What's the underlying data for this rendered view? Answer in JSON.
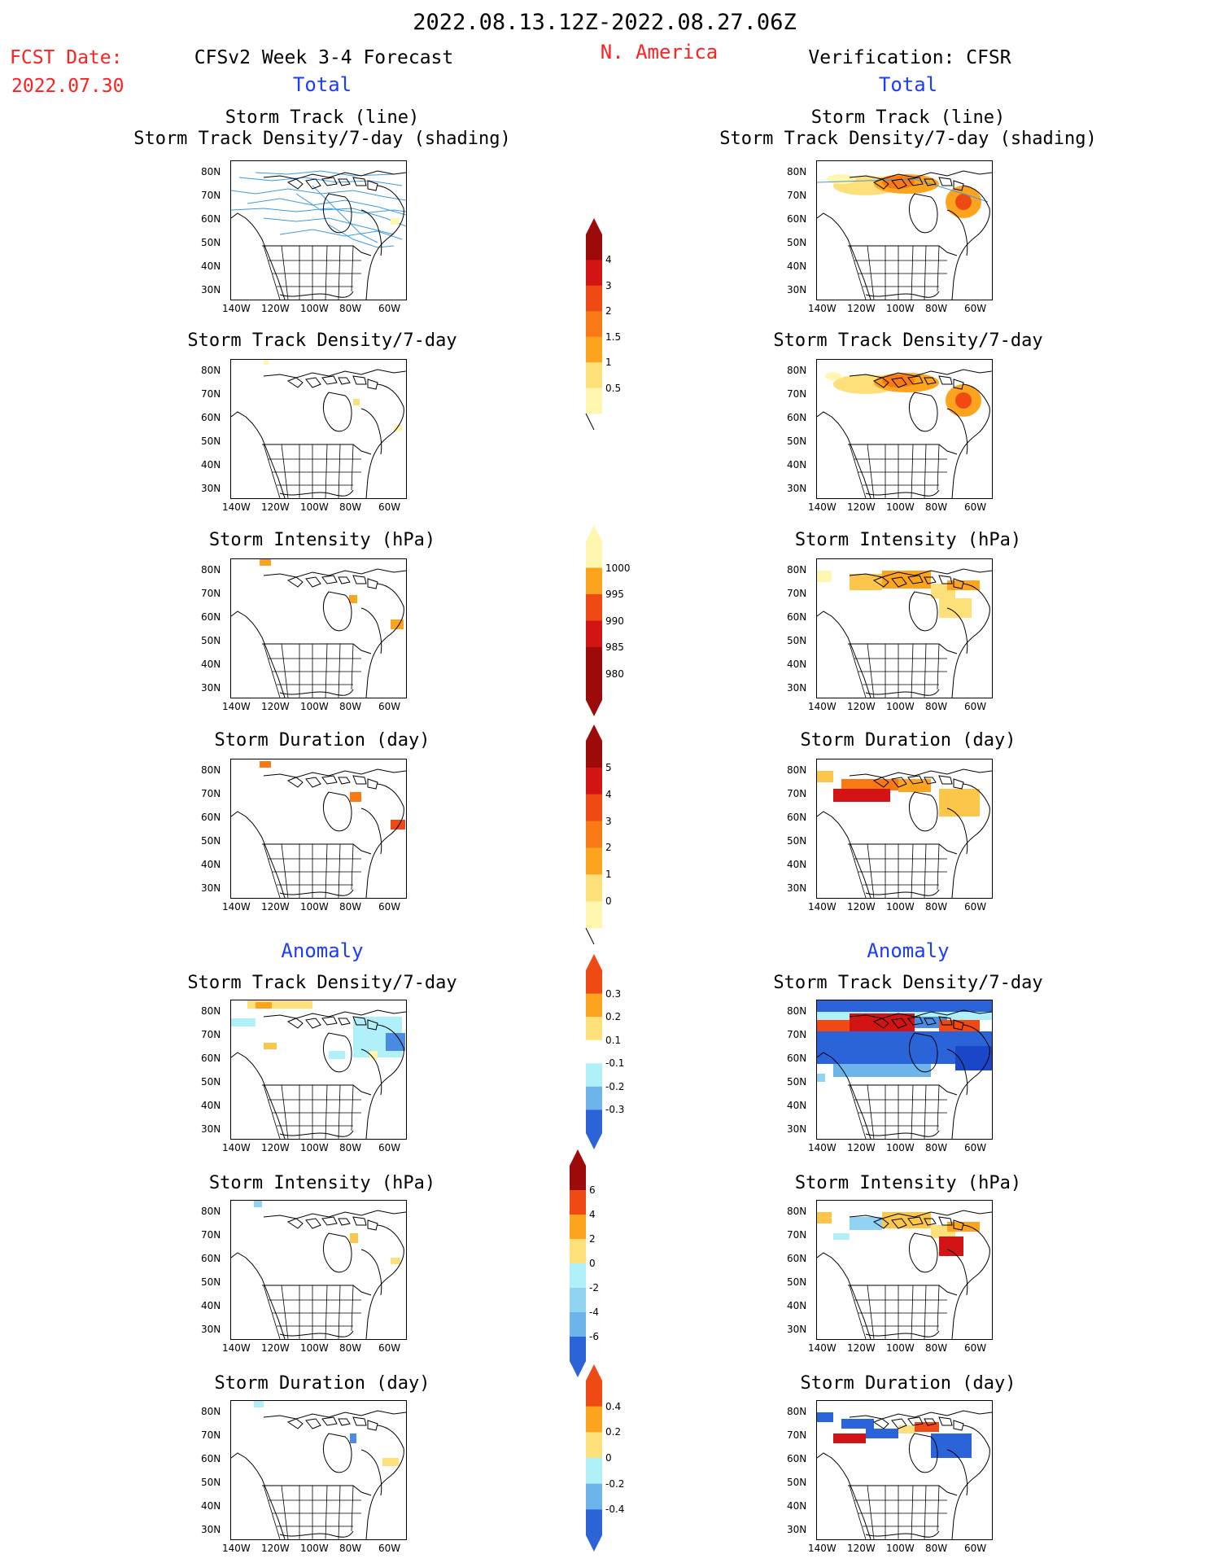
{
  "header": {
    "date_range": "2022.08.13.12Z-2022.08.27.06Z",
    "region": "N. America",
    "fcst_label": "FCST Date:",
    "fcst_date": "2022.07.30",
    "forecast_title": "CFSv2 Week 3-4 Forecast",
    "verification_title": "Verification: CFSR",
    "total_left": "Total",
    "total_right": "Total",
    "anomaly_left": "Anomaly",
    "anomaly_right": "Anomaly"
  },
  "panel_titles": {
    "storm_track_line": "Storm Track (line)",
    "storm_track_density_shading": "Storm Track Density/7-day (shading)",
    "storm_track_density": "Storm Track Density/7-day",
    "storm_intensity": "Storm Intensity (hPa)",
    "storm_duration": "Storm Duration (day)"
  },
  "axes": {
    "lat_ticks": [
      "80N",
      "70N",
      "60N",
      "50N",
      "40N",
      "30N"
    ],
    "lon_ticks": [
      "140W",
      "120W",
      "100W",
      "80W",
      "60W"
    ]
  },
  "colorbars": {
    "density_total": [
      "4",
      "3",
      "2",
      "1.5",
      "1",
      "0.5"
    ],
    "intensity_total": [
      "1000",
      "995",
      "990",
      "985",
      "980"
    ],
    "duration_total": [
      "5",
      "4",
      "3",
      "2",
      "1",
      "0"
    ],
    "density_anom": [
      "0.3",
      "0.2",
      "0.1",
      "-0.1",
      "-0.2",
      "-0.3"
    ],
    "intensity_anom": [
      "6",
      "4",
      "2",
      "0",
      "-2",
      "-4",
      "-6"
    ],
    "duration_anom": [
      "0.4",
      "0.2",
      "0",
      "-0.2",
      "-0.4"
    ]
  },
  "colors": {
    "warm": [
      "#fff6b0",
      "#fde07a",
      "#fcc64a",
      "#fca41e",
      "#f97a14",
      "#ef4a14",
      "#d21414",
      "#9c0a0a"
    ],
    "cool": [
      "#b0f0f8",
      "#90d4f2",
      "#6cb4ea",
      "#4a8ce2",
      "#2a64d8",
      "#1a46c8"
    ],
    "track_line": "#3c9cdc",
    "red_text": "#ff2020",
    "blue_text": "#1e3cff"
  }
}
